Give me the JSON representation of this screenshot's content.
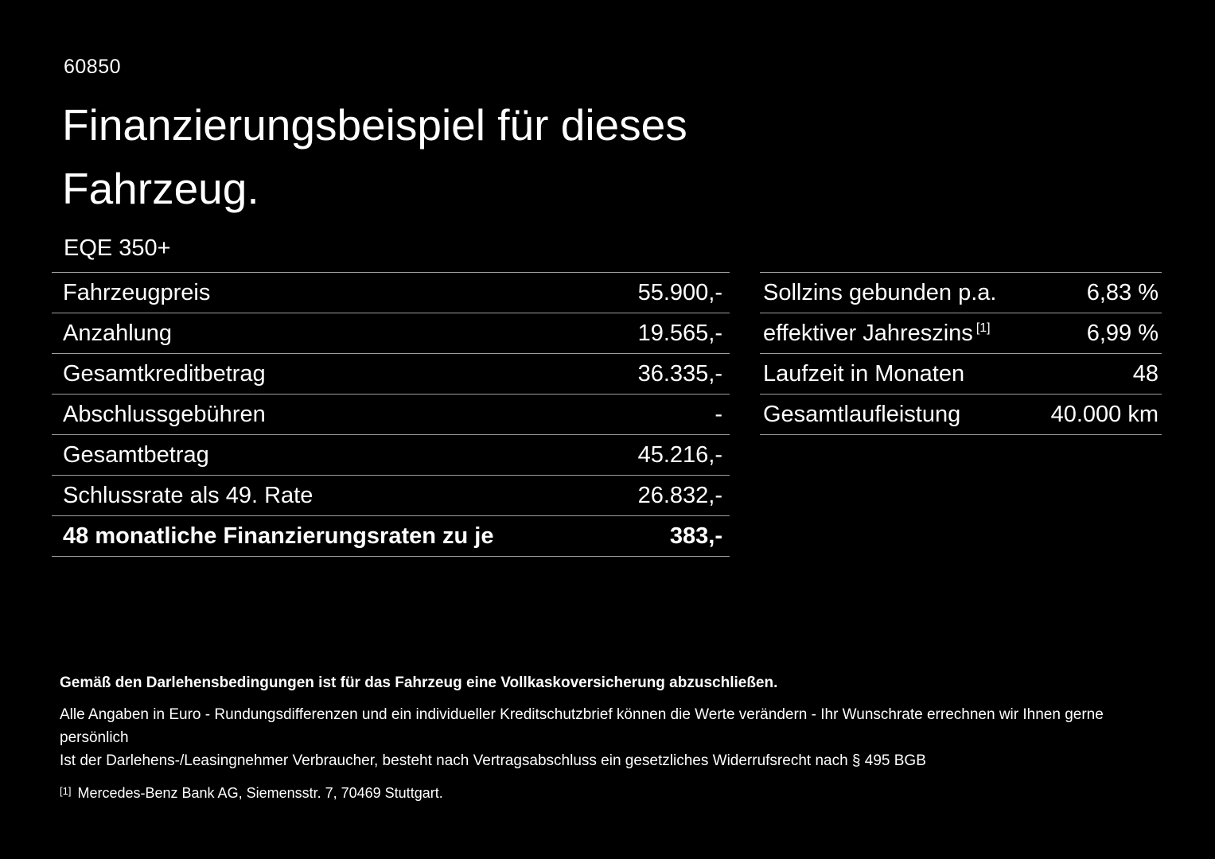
{
  "page": {
    "id": "60850",
    "title_line1": "Finanzierungsbeispiel für dieses",
    "title_line2": "Fahrzeug.",
    "model": "EQE 350+"
  },
  "left_table": {
    "rows": [
      {
        "label": "Fahrzeugpreis",
        "value": "55.900,-"
      },
      {
        "label": "Anzahlung",
        "value": "19.565,-"
      },
      {
        "label": "Gesamtkreditbetrag",
        "value": "36.335,-"
      },
      {
        "label": "Abschlussgebühren",
        "value": "-"
      },
      {
        "label": "Gesamtbetrag",
        "value": "45.216,-"
      },
      {
        "label": "Schlussrate als 49. Rate",
        "value": "26.832,-"
      },
      {
        "label": "48 monatliche Finanzierungsraten zu je",
        "value": "383,-"
      }
    ]
  },
  "right_table": {
    "rows": [
      {
        "label": "Sollzins gebunden p.a.",
        "sup": "",
        "value": "6,83 %"
      },
      {
        "label": "effektiver Jahreszins",
        "sup": "[1]",
        "value": "6,99 %"
      },
      {
        "label": "Laufzeit in Monaten",
        "sup": "",
        "value": "48"
      },
      {
        "label": "Gesamtlaufleistung",
        "sup": "",
        "value": "40.000 km"
      }
    ]
  },
  "footnotes": {
    "bold_note": "Gemäß den Darlehensbedingungen ist für das Fahrzeug eine Vollkaskoversicherung abzuschließen.",
    "note1": "Alle Angaben in Euro - Rundungsdifferenzen und ein individueller Kreditschutzbrief können die Werte verändern - Ihr Wunschrate errechnen wir Ihnen gerne persönlich",
    "note2": "Ist der Darlehens-/Leasingnehmer Verbraucher, besteht nach Vertragsabschluss ein gesetzliches Widerrufsrecht nach § 495 BGB",
    "reference_marker": "[1]",
    "reference": "Mercedes-Benz Bank AG, Siemensstr. 7, 70469 Stuttgart."
  },
  "colors": {
    "background": "#000000",
    "text": "#ffffff",
    "divider": "#9e9e9e"
  }
}
